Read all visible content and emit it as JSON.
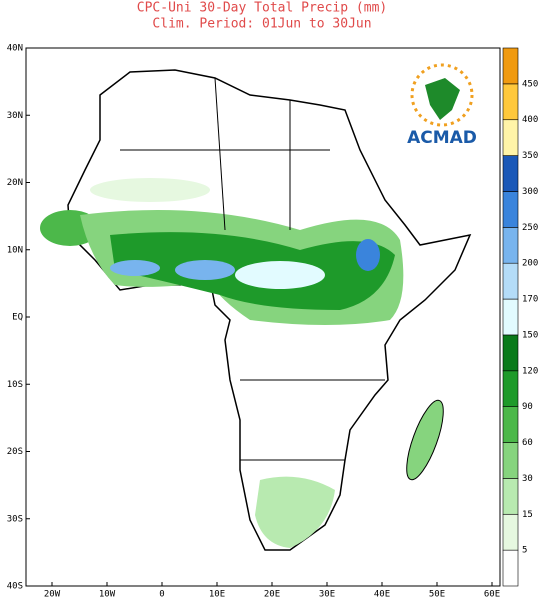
{
  "title": "CPC-Uni 30-Day Total Precip (mm)",
  "subtitle": "Clim. Period: 01Jun to 30Jun",
  "logo_text": "ACMAD",
  "lat_labels": [
    "40N",
    "30N",
    "20N",
    "10N",
    "EQ",
    "10S",
    "20S",
    "30S",
    "40S"
  ],
  "lon_labels": [
    "20W",
    "10W",
    "0",
    "10E",
    "20E",
    "30E",
    "40E",
    "50E",
    "60E"
  ],
  "colorbar": {
    "ticks": [
      5,
      15,
      30,
      60,
      90,
      120,
      150,
      170,
      200,
      250,
      300,
      350,
      400,
      450
    ],
    "colors": [
      "#ffffff",
      "#e6f8e0",
      "#b8eab0",
      "#86d47e",
      "#4cb84a",
      "#1e9a2a",
      "#0a7a1a",
      "#e2fbff",
      "#b4dcf8",
      "#78b4ee",
      "#3a84dc",
      "#1a58b8",
      "#fff4a8",
      "#ffc83c",
      "#f09a10",
      "#e23a10"
    ]
  }
}
